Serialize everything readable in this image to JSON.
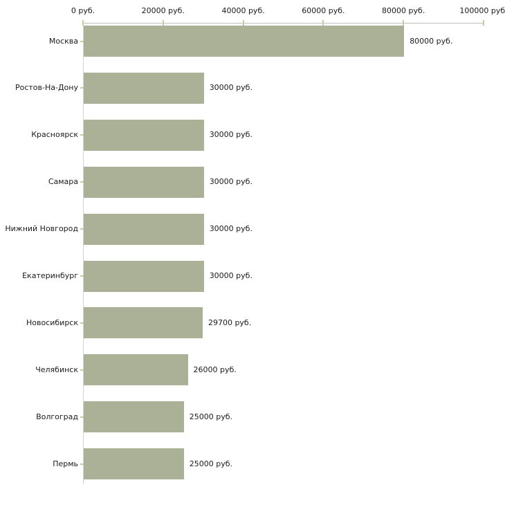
{
  "chart_data": {
    "type": "bar",
    "orientation": "horizontal",
    "title": "",
    "xlabel": "",
    "ylabel": "",
    "unit": "руб.",
    "categories": [
      "Москва",
      "Ростов-На-Дону",
      "Красноярск",
      "Самара",
      "Нижний Новгород",
      "Екатеринбург",
      "Новосибирск",
      "Челябинск",
      "Волгоград",
      "Пермь"
    ],
    "values": [
      80000,
      30000,
      30000,
      30000,
      30000,
      30000,
      29700,
      26000,
      25000,
      25000
    ],
    "bar_labels": [
      "80000 руб.",
      "30000 руб.",
      "30000 руб.",
      "30000 руб.",
      "30000 руб.",
      "30000 руб.",
      "29700 руб.",
      "26000 руб.",
      "25000 руб.",
      "25000 руб."
    ],
    "xlim": [
      0,
      100000
    ],
    "x_ticks": [
      {
        "value": 0,
        "label": "0 руб."
      },
      {
        "value": 20000,
        "label": "20000 руб."
      },
      {
        "value": 40000,
        "label": "40000 руб."
      },
      {
        "value": 60000,
        "label": "60000 руб."
      },
      {
        "value": 80000,
        "label": "80000 руб."
      },
      {
        "value": 100000,
        "label": "100000 руб."
      }
    ],
    "grid": false,
    "legend": "none",
    "axis_position": "top",
    "colors": {
      "bar_fill": "#abb197",
      "axis_line": "#bfbfbf",
      "y_axis_line": "#d2d2d2",
      "tick_mark": "#c9c9a1",
      "text": "#1a1a1a",
      "background": "#ffffff"
    }
  }
}
